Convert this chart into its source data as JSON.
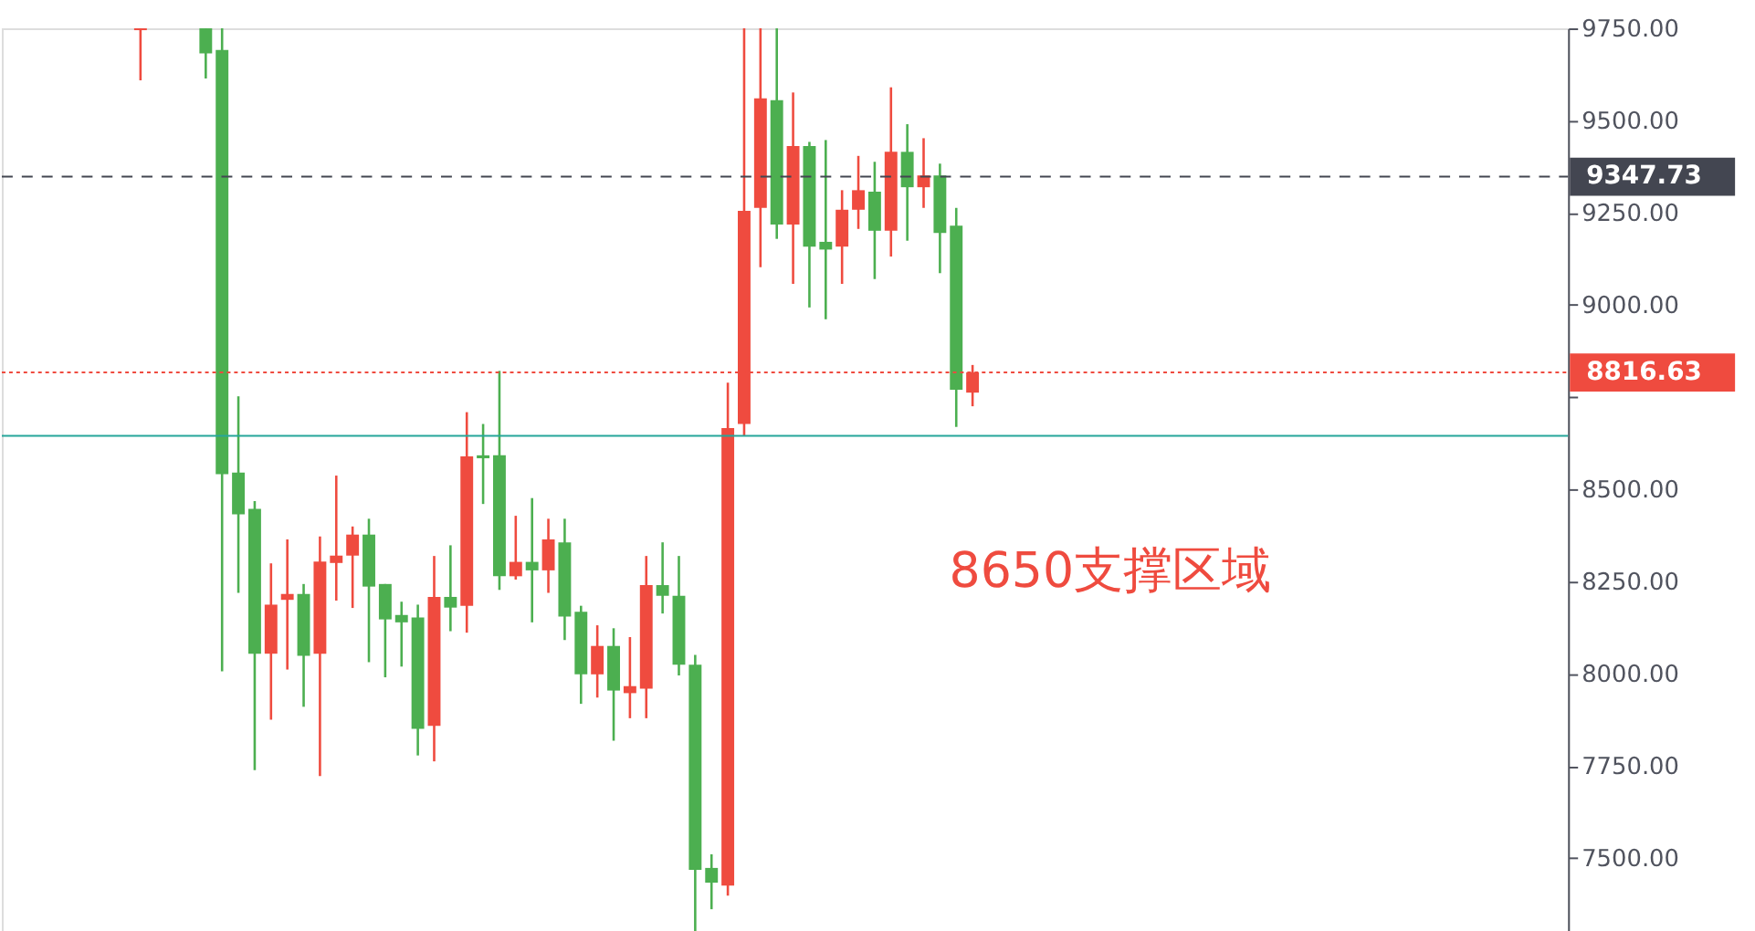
{
  "chart_data": {
    "type": "candlestick",
    "categories": [
      null,
      null,
      null,
      null,
      null,
      null,
      null,
      null,
      null,
      null,
      null,
      null,
      null,
      null,
      null,
      null,
      null,
      null,
      null,
      null,
      null,
      null,
      null,
      null,
      null,
      null,
      null,
      null,
      null,
      null,
      null,
      null,
      null,
      null,
      null,
      null,
      null,
      null,
      null,
      null,
      null,
      null,
      null,
      null,
      null,
      null,
      null,
      null,
      null,
      null,
      null,
      null,
      null,
      null,
      null,
      null,
      null,
      null,
      null,
      null,
      null,
      null,
      null,
      null,
      null,
      null,
      null,
      null,
      null,
      null,
      null,
      null,
      null,
      null,
      null,
      null,
      null,
      null,
      null,
      null,
      null,
      null,
      null,
      null,
      null,
      null,
      null,
      null,
      null,
      null,
      null,
      null,
      null,
      null,
      null,
      null
    ],
    "ohlc": [
      null,
      null,
      null,
      null,
      null,
      null,
      null,
      null,
      [
        9745,
        9750,
        9609,
        9750
      ],
      null,
      null,
      null,
      [
        9750,
        9750,
        9614,
        9682
      ],
      [
        9691,
        9750,
        8006,
        8541
      ],
      [
        8545,
        8752,
        8219,
        8432
      ],
      [
        8447,
        8468,
        7738,
        8054
      ],
      [
        8054,
        8299,
        7875,
        8187
      ],
      [
        8200,
        8364,
        8011,
        8216
      ],
      [
        8216,
        8243,
        7910,
        8048
      ],
      [
        8054,
        8372,
        7722,
        8304
      ],
      [
        8300,
        8537,
        8198,
        8320
      ],
      [
        8320,
        8399,
        8178,
        8377
      ],
      [
        8377,
        8420,
        8031,
        8236
      ],
      [
        8243,
        8243,
        7990,
        8147
      ],
      [
        8159,
        8195,
        8019,
        8139
      ],
      [
        8152,
        8187,
        7778,
        7850
      ],
      [
        7858,
        8319,
        7762,
        8208
      ],
      [
        8208,
        8348,
        8115,
        8179
      ],
      [
        8184,
        8709,
        8111,
        8589
      ],
      [
        8592,
        8677,
        8460,
        8584
      ],
      [
        8592,
        8821,
        8227,
        8264
      ],
      [
        8264,
        8428,
        8255,
        8303
      ],
      [
        8303,
        8476,
        8139,
        8280
      ],
      [
        8280,
        8420,
        8219,
        8364
      ],
      [
        8356,
        8420,
        8091,
        8155
      ],
      [
        8168,
        8184,
        7918,
        7998
      ],
      [
        7998,
        8131,
        7935,
        8075
      ],
      [
        8075,
        8123,
        7818,
        7954
      ],
      [
        7947,
        8099,
        7879,
        7966
      ],
      [
        7959,
        8319,
        7879,
        8240
      ],
      [
        8240,
        8356,
        8163,
        8211
      ],
      [
        8211,
        8319,
        7995,
        8024
      ],
      [
        8024,
        8051,
        7297,
        7468
      ],
      [
        7473,
        7510,
        7361,
        7433
      ],
      [
        7425,
        8789,
        7398,
        8666
      ],
      [
        8677,
        9750,
        8645,
        9255
      ],
      [
        9263,
        9750,
        9102,
        9560
      ],
      [
        9555,
        9750,
        9179,
        9218
      ],
      [
        9218,
        9576,
        9057,
        9431
      ],
      [
        9431,
        9442,
        8993,
        9158
      ],
      [
        9171,
        9447,
        8961,
        9150
      ],
      [
        9158,
        9311,
        9057,
        9258
      ],
      [
        9258,
        9404,
        9206,
        9311
      ],
      [
        9307,
        9388,
        9070,
        9201
      ],
      [
        9201,
        9590,
        9131,
        9415
      ],
      [
        9415,
        9490,
        9174,
        9319
      ],
      [
        9319,
        9452,
        9263,
        9351
      ],
      [
        9351,
        9383,
        9086,
        9195
      ],
      [
        9215,
        9263,
        8669,
        8770
      ],
      [
        8762,
        8837,
        8725,
        8817
      ],
      null,
      null,
      null,
      null,
      null,
      null,
      null,
      null,
      null,
      null,
      null,
      null,
      null,
      null,
      null,
      null,
      null,
      null,
      null,
      null,
      null,
      null,
      null,
      null,
      null,
      null,
      null,
      null,
      null,
      null,
      null,
      null,
      null,
      null,
      null,
      null
    ],
    "colors": [
      null,
      null,
      null,
      null,
      null,
      null,
      null,
      null,
      "#ef4b3f",
      null,
      null,
      null,
      "#4caf50",
      "#4caf50",
      "#4caf50",
      "#4caf50",
      "#ef4b3f",
      "#ef4b3f",
      "#4caf50",
      "#ef4b3f",
      "#ef4b3f",
      "#ef4b3f",
      "#4caf50",
      "#4caf50",
      "#4caf50",
      "#4caf50",
      "#ef4b3f",
      "#4caf50",
      "#ef4b3f",
      "#4caf50",
      "#4caf50",
      "#ef4b3f",
      "#4caf50",
      "#ef4b3f",
      "#4caf50",
      "#4caf50",
      "#ef4b3f",
      "#4caf50",
      "#ef4b3f",
      "#ef4b3f",
      "#4caf50",
      "#4caf50",
      "#4caf50",
      "#4caf50",
      "#ef4b3f",
      "#ef4b3f",
      "#ef4b3f",
      "#4caf50",
      "#ef4b3f",
      "#4caf50",
      "#4caf50",
      "#ef4b3f",
      "#ef4b3f",
      "#4caf50",
      "#ef4b3f",
      "#4caf50",
      "#ef4b3f",
      "#4caf50",
      "#4caf50",
      "#ef4b3f",
      null,
      null,
      null,
      null,
      null,
      null,
      null,
      null,
      null,
      null,
      null,
      null,
      null,
      null,
      null,
      null,
      null,
      null,
      null,
      null,
      null,
      null,
      null,
      null,
      null,
      null,
      null,
      null,
      null,
      null,
      null,
      null,
      null,
      null,
      null,
      null
    ],
    "ylim": [
      7290,
      9750
    ],
    "yticks": [
      {
        "value": 7500,
        "label": "7500.00"
      },
      {
        "value": 7750,
        "label": "7750.00"
      },
      {
        "value": 8000,
        "label": "8000.00"
      },
      {
        "value": 8250,
        "label": "8250.00"
      },
      {
        "value": 8500,
        "label": "8500.00"
      },
      {
        "value": 8750,
        "label": null
      },
      {
        "value": 9000,
        "label": "9000.00"
      },
      {
        "value": 9250,
        "label": "9250.00"
      },
      {
        "value": 9500,
        "label": "9500.00"
      },
      {
        "value": 9750,
        "label": "9750.00"
      }
    ],
    "tick_labels": "y",
    "grid": false,
    "ref_lines": [
      {
        "axis": "y",
        "value": 9347.73,
        "label": "9347.73",
        "color": "#434651",
        "line_style": "dashed"
      },
      {
        "axis": "y",
        "value": 8816.63,
        "label": "8816.63",
        "color": "#ef4b3f",
        "line_style": "dotted"
      },
      {
        "axis": "y",
        "value": 8645,
        "color": "#26a69a",
        "line_style": "solid"
      }
    ],
    "annotations": [
      "8650支撑区域"
    ]
  }
}
